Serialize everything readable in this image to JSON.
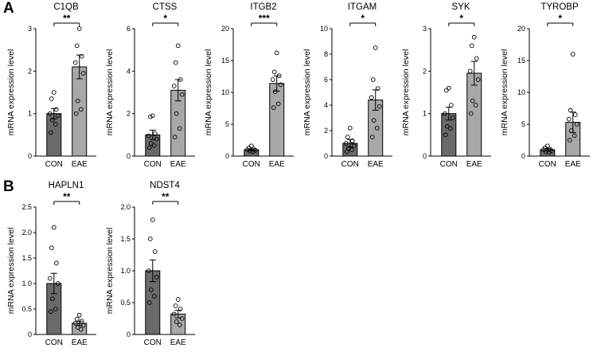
{
  "figure": {
    "panels": [
      {
        "label": "A"
      },
      {
        "label": "B"
      }
    ]
  },
  "bar_colors": {
    "CON": "#6a6a6a",
    "EAE": "#a8a8a8"
  },
  "chart_data": [
    {
      "type": "bar",
      "panel": "A",
      "title": "C1QB",
      "ylabel": "mRNA expression level",
      "categories": [
        "CON",
        "EAE"
      ],
      "ylim": [
        0,
        3
      ],
      "yticks": [
        0,
        1,
        2,
        3
      ],
      "ytick_labels": [
        "0",
        "1",
        "2",
        "3"
      ],
      "significance": "**",
      "series": [
        {
          "name": "CON",
          "mean": 1.0,
          "sem": 0.12,
          "color": "#6a6a6a",
          "points": [
            1.5,
            1.35,
            1.1,
            1.0,
            0.95,
            0.85,
            0.75,
            0.55
          ]
        },
        {
          "name": "EAE",
          "mean": 2.1,
          "sem": 0.28,
          "color": "#a8a8a8",
          "points": [
            3.0,
            2.6,
            2.35,
            2.2,
            1.95,
            1.3,
            1.1,
            1.0
          ]
        }
      ]
    },
    {
      "type": "bar",
      "panel": "A",
      "title": "CTSS",
      "ylabel": "mRNA expression level",
      "categories": [
        "CON",
        "EAE"
      ],
      "ylim": [
        0,
        6
      ],
      "yticks": [
        0,
        2,
        4,
        6
      ],
      "ytick_labels": [
        "0",
        "2",
        "4",
        "6"
      ],
      "significance": "*",
      "series": [
        {
          "name": "CON",
          "mean": 1.0,
          "sem": 0.22,
          "color": "#6a6a6a",
          "points": [
            1.9,
            1.85,
            1.05,
            0.95,
            0.8,
            0.6,
            0.5,
            0.4
          ]
        },
        {
          "name": "EAE",
          "mean": 3.1,
          "sem": 0.5,
          "color": "#a8a8a8",
          "points": [
            5.2,
            4.4,
            3.6,
            3.3,
            2.9,
            2.0,
            1.3,
            0.9
          ]
        }
      ]
    },
    {
      "type": "bar",
      "panel": "A",
      "title": "ITGB2",
      "ylabel": "mRNA expression level",
      "categories": [
        "CON",
        "EAE"
      ],
      "ylim": [
        0,
        20
      ],
      "yticks": [
        0,
        5,
        10,
        15,
        20
      ],
      "ytick_labels": [
        "0",
        "5",
        "10",
        "15",
        "20"
      ],
      "significance": "***",
      "series": [
        {
          "name": "CON",
          "mean": 1.0,
          "sem": 0.15,
          "color": "#6a6a6a",
          "points": [
            1.6,
            1.3,
            1.1,
            1.0,
            0.9,
            0.8,
            0.7
          ]
        },
        {
          "name": "EAE",
          "mean": 11.4,
          "sem": 1.2,
          "color": "#a8a8a8",
          "points": [
            16.2,
            13.2,
            12.6,
            12.0,
            11.2,
            10.1,
            8.2,
            7.6
          ]
        }
      ]
    },
    {
      "type": "bar",
      "panel": "A",
      "title": "ITGAM",
      "ylabel": "mRNA expression level",
      "categories": [
        "CON",
        "EAE"
      ],
      "ylim": [
        0,
        10
      ],
      "yticks": [
        0,
        2,
        4,
        6,
        8,
        10
      ],
      "ytick_labels": [
        "0",
        "2",
        "4",
        "6",
        "8",
        "10"
      ],
      "significance": "*",
      "series": [
        {
          "name": "CON",
          "mean": 1.0,
          "sem": 0.3,
          "color": "#6a6a6a",
          "points": [
            2.2,
            1.5,
            1.2,
            1.0,
            0.8,
            0.6,
            0.5,
            0.35
          ]
        },
        {
          "name": "EAE",
          "mean": 4.4,
          "sem": 0.8,
          "color": "#a8a8a8",
          "points": [
            8.5,
            6.0,
            5.3,
            4.6,
            3.9,
            2.8,
            2.2,
            1.5
          ]
        }
      ]
    },
    {
      "type": "bar",
      "panel": "A",
      "title": "SYK",
      "ylabel": "mRNA expression level",
      "categories": [
        "CON",
        "EAE"
      ],
      "ylim": [
        0,
        3
      ],
      "yticks": [
        0,
        1,
        2,
        3
      ],
      "ytick_labels": [
        "0",
        "1",
        "2",
        "3"
      ],
      "significance": "*",
      "series": [
        {
          "name": "CON",
          "mean": 1.0,
          "sem": 0.15,
          "color": "#6a6a6a",
          "points": [
            1.6,
            1.55,
            1.2,
            1.0,
            0.9,
            0.7,
            0.65,
            0.5
          ]
        },
        {
          "name": "EAE",
          "mean": 1.95,
          "sem": 0.28,
          "color": "#a8a8a8",
          "points": [
            2.8,
            2.6,
            2.3,
            2.0,
            1.8,
            1.3,
            1.2,
            1.0
          ]
        }
      ]
    },
    {
      "type": "bar",
      "panel": "A",
      "title": "TYROBP",
      "ylabel": "mRNA expression level",
      "categories": [
        "CON",
        "EAE"
      ],
      "ylim": [
        0,
        20
      ],
      "yticks": [
        0,
        5,
        10,
        15,
        20
      ],
      "ytick_labels": [
        "0",
        "5",
        "10",
        "15",
        "20"
      ],
      "significance": "*",
      "series": [
        {
          "name": "CON",
          "mean": 1.0,
          "sem": 0.2,
          "color": "#6a6a6a",
          "points": [
            1.6,
            1.3,
            1.1,
            1.0,
            0.85,
            0.7,
            0.6
          ]
        },
        {
          "name": "EAE",
          "mean": 5.3,
          "sem": 1.6,
          "color": "#a8a8a8",
          "points": [
            16.0,
            7.2,
            6.5,
            5.8,
            5.0,
            4.0,
            3.2,
            2.5
          ]
        }
      ]
    },
    {
      "type": "bar",
      "panel": "B",
      "title": "HAPLN1",
      "ylabel": "mRNA expression level",
      "categories": [
        "CON",
        "EAE"
      ],
      "ylim": [
        0,
        2.5
      ],
      "yticks": [
        0,
        0.5,
        1.0,
        1.5,
        2.0,
        2.5
      ],
      "ytick_labels": [
        "0",
        "0.5",
        "1.0",
        "1.5",
        "2.0",
        "2.5"
      ],
      "significance": "**",
      "series": [
        {
          "name": "CON",
          "mean": 1.0,
          "sem": 0.2,
          "color": "#6a6a6a",
          "points": [
            2.1,
            1.7,
            1.4,
            1.1,
            1.0,
            0.7,
            0.5,
            0.45
          ]
        },
        {
          "name": "EAE",
          "mean": 0.22,
          "sem": 0.04,
          "color": "#a8a8a8",
          "points": [
            0.38,
            0.3,
            0.26,
            0.22,
            0.18,
            0.14,
            0.1
          ]
        }
      ]
    },
    {
      "type": "bar",
      "panel": "B",
      "title": "NDST4",
      "ylabel": "mRNA expression level",
      "categories": [
        "CON",
        "EAE"
      ],
      "ylim": [
        0,
        2.0
      ],
      "yticks": [
        0,
        0.5,
        1.0,
        1.5,
        2.0
      ],
      "ytick_labels": [
        "0",
        "0.5",
        "1.0",
        "1.5",
        "2.0"
      ],
      "significance": "**",
      "series": [
        {
          "name": "CON",
          "mean": 1.0,
          "sem": 0.17,
          "color": "#6a6a6a",
          "points": [
            1.8,
            1.5,
            1.3,
            1.0,
            0.9,
            0.7,
            0.6,
            0.5
          ]
        },
        {
          "name": "EAE",
          "mean": 0.32,
          "sem": 0.06,
          "color": "#a8a8a8",
          "points": [
            0.55,
            0.45,
            0.4,
            0.32,
            0.25,
            0.2,
            0.15
          ]
        }
      ]
    }
  ]
}
